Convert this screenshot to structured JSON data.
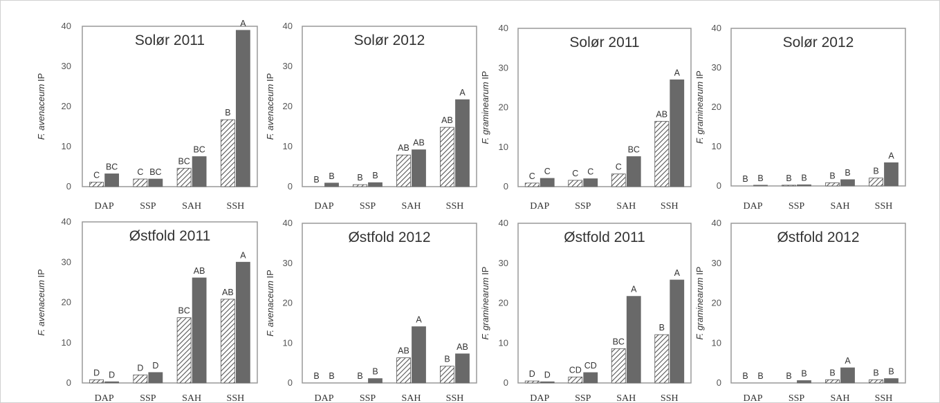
{
  "chart_data": [
    {
      "type": "bar",
      "title": "Solør 2011",
      "ylabel_species": "F. avenaceum",
      "ylabel_suffix": " IP",
      "categories": [
        "DAP",
        "SSP",
        "SAH",
        "SSH"
      ],
      "ylim": [
        0,
        40
      ],
      "yticks": [
        "0",
        "10",
        "20",
        "30",
        "40"
      ],
      "series": [
        {
          "style": "hatched",
          "values": [
            1.1,
            1.9,
            4.6,
            16.7
          ],
          "labels": [
            "C",
            "C",
            "BC",
            "B"
          ]
        },
        {
          "style": "solid",
          "values": [
            3.2,
            1.9,
            7.5,
            39.0
          ],
          "labels": [
            "BC",
            "BC",
            "BC",
            "A"
          ]
        }
      ]
    },
    {
      "type": "bar",
      "title": "Solør 2012",
      "ylabel_species": "F. avenaceum",
      "ylabel_suffix": " IP",
      "categories": [
        "DAP",
        "SSP",
        "SAH",
        "SSH"
      ],
      "ylim": [
        0,
        40
      ],
      "yticks": [
        "0",
        "10",
        "20",
        "30",
        "40"
      ],
      "series": [
        {
          "style": "hatched",
          "values": [
            0.0,
            0.5,
            7.9,
            14.8
          ],
          "labels": [
            "B",
            "B",
            "AB",
            "AB"
          ]
        },
        {
          "style": "solid",
          "values": [
            0.9,
            1.0,
            9.2,
            21.7
          ],
          "labels": [
            "B",
            "B",
            "AB",
            "A"
          ]
        }
      ]
    },
    {
      "type": "bar",
      "title": "Solør 2011",
      "ylabel_species": "F. graminearum",
      "ylabel_suffix": " IP",
      "categories": [
        "DAP",
        "SSP",
        "SAH",
        "SSH"
      ],
      "ylim": [
        0,
        40
      ],
      "yticks": [
        "0",
        "10",
        "20",
        "30",
        "40"
      ],
      "series": [
        {
          "style": "hatched",
          "values": [
            0.9,
            1.6,
            3.2,
            16.5
          ],
          "labels": [
            "C",
            "C",
            "C",
            "AB"
          ]
        },
        {
          "style": "solid",
          "values": [
            2.1,
            2.0,
            7.6,
            27.0
          ],
          "labels": [
            "C",
            "C",
            "BC",
            "A"
          ]
        }
      ]
    },
    {
      "type": "bar",
      "title": "Solør 2012",
      "ylabel_species": "F. graminearum",
      "ylabel_suffix": " IP",
      "categories": [
        "DAP",
        "SSP",
        "SAH",
        "SSH"
      ],
      "ylim": [
        0,
        40
      ],
      "yticks": [
        "0",
        "10",
        "20",
        "30",
        "40"
      ],
      "series": [
        {
          "style": "hatched",
          "values": [
            0.0,
            0.2,
            0.8,
            2.0
          ],
          "labels": [
            "B",
            "B",
            "B",
            "B"
          ]
        },
        {
          "style": "solid",
          "values": [
            0.2,
            0.3,
            1.6,
            5.9
          ],
          "labels": [
            "B",
            "B",
            "B",
            "A"
          ]
        }
      ]
    },
    {
      "type": "bar",
      "title": "Østfold 2011",
      "ylabel_species": "F. avenaceum",
      "ylabel_suffix": " IP",
      "categories": [
        "DAP",
        "SSP",
        "SAH",
        "SSH"
      ],
      "ylim": [
        0,
        40
      ],
      "yticks": [
        "0",
        "10",
        "20",
        "30",
        "40"
      ],
      "series": [
        {
          "style": "hatched",
          "values": [
            0.8,
            2.0,
            16.2,
            20.8
          ],
          "labels": [
            "D",
            "D",
            "BC",
            "AB"
          ]
        },
        {
          "style": "solid",
          "values": [
            0.3,
            2.6,
            26.1,
            30.0
          ],
          "labels": [
            "D",
            "D",
            "AB",
            "A"
          ]
        }
      ]
    },
    {
      "type": "bar",
      "title": "Østfold 2012",
      "ylabel_species": "F. avenaceum",
      "ylabel_suffix": " IP",
      "categories": [
        "DAP",
        "SSP",
        "SAH",
        "SSH"
      ],
      "ylim": [
        0,
        40
      ],
      "yticks": [
        "0",
        "10",
        "20",
        "30",
        "40"
      ],
      "series": [
        {
          "style": "hatched",
          "values": [
            0.0,
            0.0,
            6.3,
            4.2
          ],
          "labels": [
            "B",
            "B",
            "AB",
            "B"
          ]
        },
        {
          "style": "solid",
          "values": [
            0.0,
            1.1,
            14.1,
            7.3
          ],
          "labels": [
            "B",
            "B",
            "A",
            "AB"
          ]
        }
      ]
    },
    {
      "type": "bar",
      "title": "Østfold 2011",
      "ylabel_species": "F. graminearum",
      "ylabel_suffix": " IP",
      "categories": [
        "DAP",
        "SSP",
        "SAH",
        "SSH"
      ],
      "ylim": [
        0,
        40
      ],
      "yticks": [
        "0",
        "10",
        "20",
        "30",
        "40"
      ],
      "series": [
        {
          "style": "hatched",
          "values": [
            0.5,
            1.5,
            8.6,
            12.1
          ],
          "labels": [
            "D",
            "CD",
            "BC",
            "B"
          ]
        },
        {
          "style": "solid",
          "values": [
            0.3,
            2.6,
            21.7,
            25.8
          ],
          "labels": [
            "D",
            "CD",
            "A",
            "A"
          ]
        }
      ]
    },
    {
      "type": "bar",
      "title": "Østfold 2012",
      "ylabel_species": "F. graminearum",
      "ylabel_suffix": " IP",
      "categories": [
        "DAP",
        "SSP",
        "SAH",
        "SSH"
      ],
      "ylim": [
        0,
        40
      ],
      "yticks": [
        "0",
        "10",
        "20",
        "30",
        "40"
      ],
      "series": [
        {
          "style": "hatched",
          "values": [
            0.0,
            0.0,
            0.8,
            0.8
          ],
          "labels": [
            "B",
            "B",
            "B",
            "B"
          ]
        },
        {
          "style": "solid",
          "values": [
            0.0,
            0.6,
            3.8,
            1.1
          ],
          "labels": [
            "B",
            "B",
            "A",
            "B"
          ]
        }
      ]
    }
  ],
  "colors": {
    "solid_bar": "#696969",
    "hatch_stroke": "#555555",
    "hatch_fill": "#ffffff",
    "frame": "#999999"
  }
}
